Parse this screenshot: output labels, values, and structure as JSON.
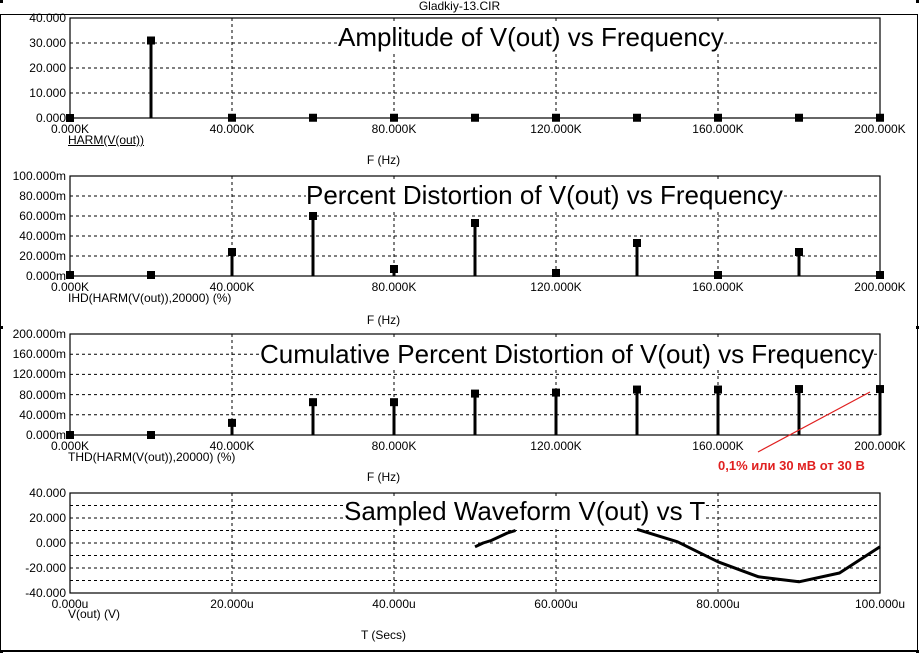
{
  "window": {
    "title": "Gladkiy-13.CIR"
  },
  "annotation": {
    "text": "0,1% или 30 мВ от 30 В",
    "color": "#e02020"
  },
  "chart_data": [
    {
      "type": "bar",
      "title": "Amplitude of V(out) vs Frequency",
      "trace_label": "HARM(V(out))",
      "xlabel": "F (Hz)",
      "xlim": [
        0,
        200000
      ],
      "ylim": [
        0,
        40
      ],
      "x_ticks": [
        "0.000K",
        "40.000K",
        "80.000K",
        "120.000K",
        "160.000K",
        "200.000K"
      ],
      "y_ticks": [
        "40.000",
        "30.000",
        "20.000",
        "10.000",
        "0.000"
      ],
      "x": [
        0,
        20000,
        40000,
        60000,
        80000,
        100000,
        120000,
        140000,
        160000,
        180000,
        200000
      ],
      "values": [
        0,
        31,
        0.1,
        0.1,
        0.1,
        0.1,
        0.1,
        0.1,
        0.1,
        0.1,
        0.1
      ]
    },
    {
      "type": "bar",
      "title": "Percent Distortion of V(out) vs Frequency",
      "trace_label": "IHD(HARM(V(out)),20000) (%)",
      "xlabel": "F (Hz)",
      "xlim": [
        0,
        200000
      ],
      "ylim": [
        0,
        0.1
      ],
      "x_ticks": [
        "0.000K",
        "40.000K",
        "80.000K",
        "120.000K",
        "160.000K",
        "200.000K"
      ],
      "y_ticks": [
        "100.000m",
        "80.000m",
        "60.000m",
        "40.000m",
        "20.000m",
        "0.000m"
      ],
      "x": [
        0,
        20000,
        40000,
        60000,
        80000,
        100000,
        120000,
        140000,
        160000,
        180000,
        200000
      ],
      "values": [
        0.001,
        0.001,
        0.024,
        0.06,
        0.007,
        0.053,
        0.003,
        0.033,
        0.001,
        0.024,
        0.001
      ]
    },
    {
      "type": "bar",
      "title": "Cumulative Percent Distortion of V(out) vs Frequency",
      "trace_label": "THD(HARM(V(out)),20000) (%)",
      "xlabel": "F (Hz)",
      "xlim": [
        0,
        200000
      ],
      "ylim": [
        0,
        0.2
      ],
      "x_ticks": [
        "0.000K",
        "40.000K",
        "80.000K",
        "120.000K",
        "160.000K",
        "200.000K"
      ],
      "y_ticks": [
        "200.000m",
        "160.000m",
        "120.000m",
        "80.000m",
        "40.000m",
        "0.000m"
      ],
      "x": [
        0,
        20000,
        40000,
        60000,
        80000,
        100000,
        120000,
        140000,
        160000,
        180000,
        200000
      ],
      "values": [
        0,
        0,
        0.024,
        0.065,
        0.065,
        0.082,
        0.084,
        0.09,
        0.09,
        0.091,
        0.091
      ]
    },
    {
      "type": "line",
      "title": "Sampled Waveform  V(out) vs T",
      "trace_label": "V(out) (V)",
      "xlabel": "T (Secs)",
      "xlim": [
        0,
        0.0001
      ],
      "ylim": [
        -40,
        40
      ],
      "x_ticks": [
        "0.000u",
        "20.000u",
        "40.000u",
        "60.000u",
        "80.000u",
        "100.000u"
      ],
      "y_ticks": [
        "40.000",
        "20.000",
        "0.000",
        "-20.000",
        "-40.000"
      ],
      "segments": [
        {
          "x": [
            5e-05,
            5.1e-05,
            5.2e-05,
            5.3e-05,
            5.4e-05,
            5.5e-05
          ],
          "y": [
            -3,
            0,
            2,
            5,
            8,
            10
          ]
        },
        {
          "x": [
            7e-05,
            7.5e-05,
            8e-05,
            8.5e-05,
            9e-05,
            9.5e-05,
            0.0001
          ],
          "y": [
            11,
            1,
            -15,
            -27,
            -31,
            -24,
            -3
          ]
        }
      ]
    }
  ]
}
